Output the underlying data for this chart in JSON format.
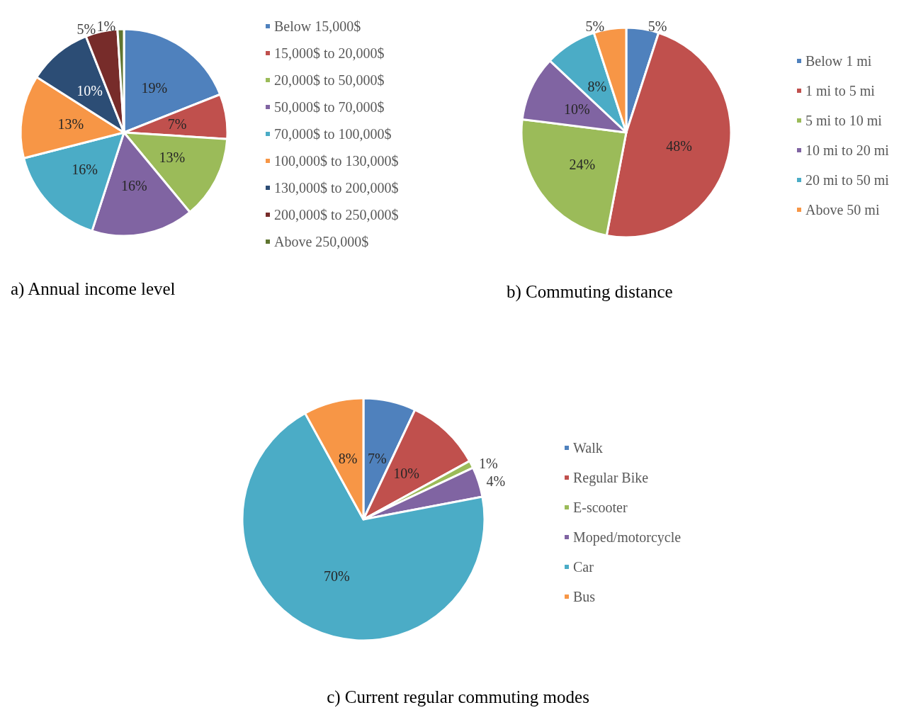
{
  "chart_data": [
    {
      "type": "pie",
      "title": "a) Annual income level",
      "legend": "right",
      "value_labels": [
        "19%",
        "7%",
        "13%",
        "16%",
        "16%",
        "13%",
        "10%",
        "5%",
        "1%"
      ],
      "categories": [
        "Below 15,000$",
        "15,000$ to 20,000$",
        "20,000$ to 50,000$",
        "50,000$ to 70,000$",
        "70,000$ to 100,000$",
        "100,000$ to 130,000$",
        "130,000$ to 200,000$",
        "200,000$ to 250,000$",
        "Above 250,000$"
      ],
      "values": [
        19,
        7,
        13,
        16,
        16,
        13,
        10,
        5,
        1
      ],
      "colors": [
        "#4f81bd",
        "#c0504d",
        "#9bbb59",
        "#8064a2",
        "#4bacc6",
        "#f79646",
        "#2c4d75",
        "#772c2a",
        "#5f7530"
      ]
    },
    {
      "type": "pie",
      "title": "b) Commuting distance",
      "legend": "right",
      "value_labels": [
        "5%",
        "48%",
        "24%",
        "10%",
        "8%",
        "5%"
      ],
      "categories": [
        "Below 1 mi",
        "1 mi to 5 mi",
        "5 mi to 10 mi",
        "10 mi to 20 mi",
        "20 mi to 50 mi",
        "Above 50 mi"
      ],
      "values": [
        5,
        48,
        24,
        10,
        8,
        5
      ],
      "colors": [
        "#4f81bd",
        "#c0504d",
        "#9bbb59",
        "#8064a2",
        "#4bacc6",
        "#f79646"
      ]
    },
    {
      "type": "pie",
      "title": "c) Current regular commuting modes",
      "legend": "right",
      "value_labels": [
        "7%",
        "10%",
        "1%",
        "4%",
        "70%",
        "8%"
      ],
      "categories": [
        "Walk",
        "Regular Bike",
        "E-scooter",
        "Moped/motorcycle",
        "Car",
        "Bus"
      ],
      "values": [
        7,
        10,
        1,
        4,
        70,
        8
      ],
      "colors": [
        "#4f81bd",
        "#c0504d",
        "#9bbb59",
        "#8064a2",
        "#4bacc6",
        "#f79646"
      ]
    }
  ]
}
